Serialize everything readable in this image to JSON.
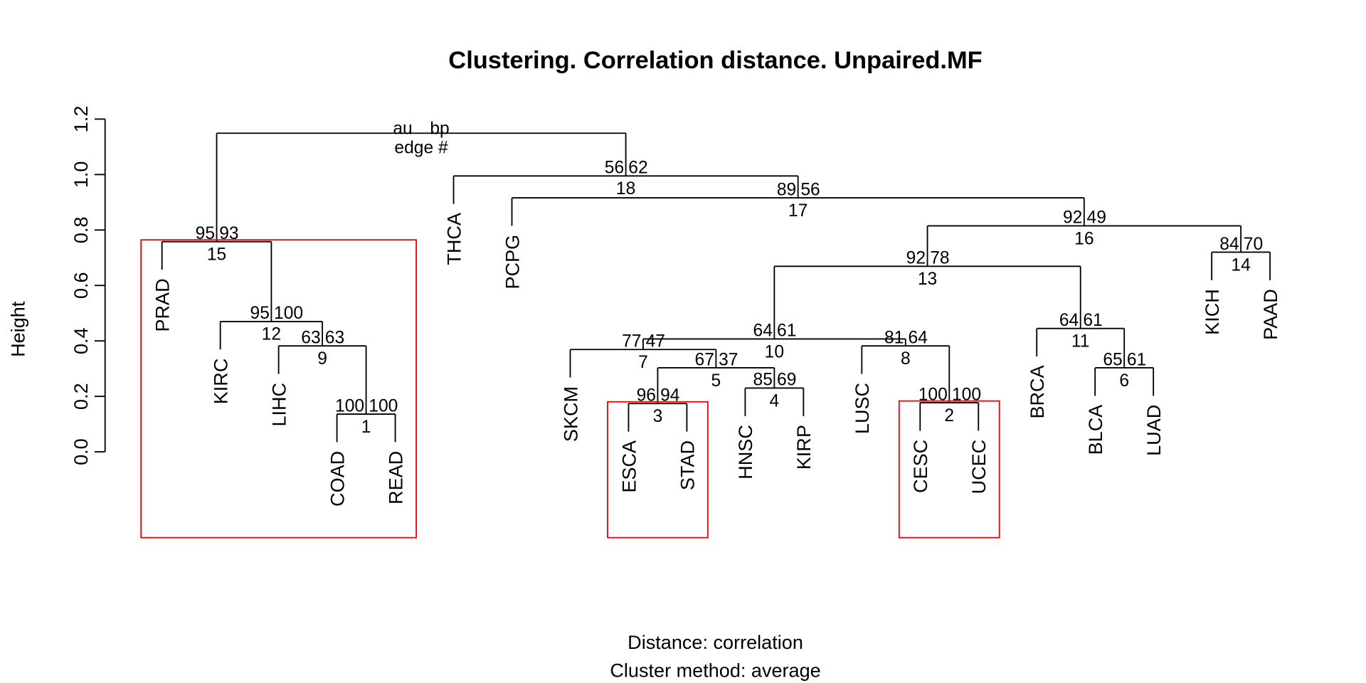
{
  "chart_data": {
    "type": "dendrogram",
    "title": "Clustering. Correlation distance. Unpaired.MF",
    "xlabel": [
      "Distance:  correlation",
      "Cluster method: average"
    ],
    "ylabel": "Height",
    "ylim": [
      0,
      1.2
    ],
    "yticks": [
      {
        "value": 0,
        "label": "0.0"
      },
      {
        "value": 0.2,
        "label": "0.2"
      },
      {
        "value": 0.4,
        "label": "0.4"
      },
      {
        "value": 0.6,
        "label": "0.6"
      },
      {
        "value": 0.8,
        "label": "0.8"
      },
      {
        "value": 1.0,
        "label": "1.0"
      },
      {
        "value": 1.2,
        "label": "1.2"
      }
    ],
    "leaves": [
      "PRAD",
      "KIRC",
      "LIHC",
      "COAD",
      "READ",
      "THCA",
      "PCPG",
      "SKCM",
      "ESCA",
      "STAD",
      "HNSC",
      "KIRP",
      "LUSC",
      "CESC",
      "UCEC",
      "BRCA",
      "BLCA",
      "LUAD",
      "KICH",
      "PAAD"
    ],
    "merges": [
      {
        "left": -4,
        "right": -5,
        "height": 0.136,
        "au": 100,
        "bp": 100,
        "edge": 1
      },
      {
        "left": -14,
        "right": -15,
        "height": 0.177,
        "au": 100,
        "bp": 100,
        "edge": 2
      },
      {
        "left": -9,
        "right": -10,
        "height": 0.174,
        "au": 96,
        "bp": 94,
        "edge": 3
      },
      {
        "left": -11,
        "right": -12,
        "height": 0.23,
        "au": 85,
        "bp": 69,
        "edge": 4
      },
      {
        "left": 3,
        "right": 4,
        "height": 0.303,
        "au": 67,
        "bp": 37,
        "edge": 5
      },
      {
        "left": -17,
        "right": -18,
        "height": 0.303,
        "au": 65,
        "bp": 61,
        "edge": 6
      },
      {
        "left": -8,
        "right": 5,
        "height": 0.369,
        "au": 77,
        "bp": 47,
        "edge": 7
      },
      {
        "left": -13,
        "right": 2,
        "height": 0.382,
        "au": 81,
        "bp": 64,
        "edge": 8
      },
      {
        "left": -3,
        "right": 1,
        "height": 0.382,
        "au": 63,
        "bp": 63,
        "edge": 9
      },
      {
        "left": 7,
        "right": 8,
        "height": 0.407,
        "au": 64,
        "bp": 61,
        "edge": 10
      },
      {
        "left": -16,
        "right": 6,
        "height": 0.445,
        "au": 64,
        "bp": 61,
        "edge": 11
      },
      {
        "left": -2,
        "right": 9,
        "height": 0.47,
        "au": 95,
        "bp": 100,
        "edge": 12
      },
      {
        "left": 10,
        "right": 11,
        "height": 0.669,
        "au": 92,
        "bp": 78,
        "edge": 13
      },
      {
        "left": -19,
        "right": -20,
        "height": 0.72,
        "au": 84,
        "bp": 70,
        "edge": 14
      },
      {
        "left": -1,
        "right": 12,
        "height": 0.758,
        "au": 95,
        "bp": 93,
        "edge": 15
      },
      {
        "left": 13,
        "right": 14,
        "height": 0.815,
        "au": 92,
        "bp": 49,
        "edge": 16
      },
      {
        "left": -7,
        "right": 16,
        "height": 0.916,
        "au": 89,
        "bp": 56,
        "edge": 17
      },
      {
        "left": -6,
        "right": 17,
        "height": 0.995,
        "au": 56,
        "bp": 62,
        "edge": 18
      },
      {
        "left": 15,
        "right": 18,
        "height": 1.149
      }
    ],
    "legend": {
      "au": "au",
      "bp": "bp",
      "edge": "edge #"
    },
    "label_colors": {
      "au": "#ff0000",
      "bp": "#00cd00",
      "edge": "#bebebe"
    },
    "highlighted_edges": [
      15,
      3,
      2
    ],
    "highlight_color": "#ff0000"
  }
}
